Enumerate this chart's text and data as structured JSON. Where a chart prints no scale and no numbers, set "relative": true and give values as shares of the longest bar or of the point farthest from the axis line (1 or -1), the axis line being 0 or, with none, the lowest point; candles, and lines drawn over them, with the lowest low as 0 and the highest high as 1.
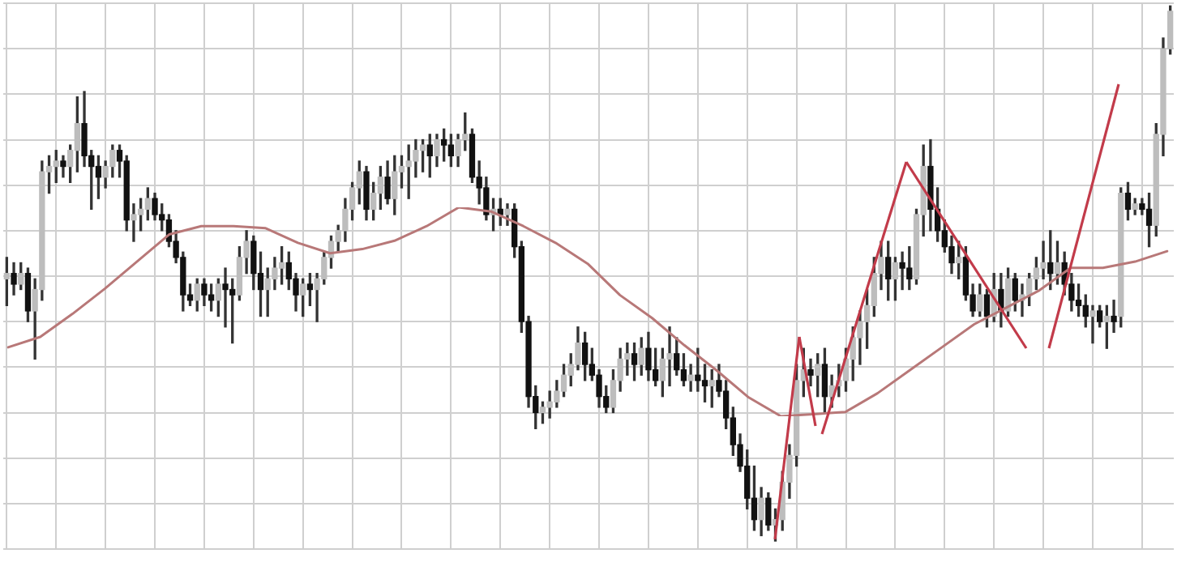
{
  "chart_data": [
    {
      "type": "candlestick",
      "relative": true,
      "grid": true,
      "tick_labels": false,
      "categories": [
        null,
        null,
        null,
        null,
        null,
        null,
        null,
        null,
        null,
        null,
        null,
        null,
        null,
        null,
        null,
        null,
        null,
        null,
        null,
        null,
        null,
        null,
        null,
        null,
        null,
        null,
        null,
        null,
        null,
        null,
        null,
        null,
        null,
        null,
        null,
        null,
        null,
        null,
        null,
        null,
        null,
        null,
        null,
        null,
        null,
        null,
        null,
        null,
        null,
        null,
        null,
        null,
        null,
        null,
        null,
        null,
        null,
        null,
        null,
        null,
        null,
        null,
        null,
        null,
        null,
        null,
        null,
        null,
        null,
        null,
        null,
        null,
        null,
        null,
        null,
        null,
        null,
        null,
        null,
        null,
        null,
        null,
        null,
        null,
        null,
        null,
        null,
        null,
        null,
        null,
        null,
        null,
        null,
        null,
        null,
        null,
        null,
        null,
        null,
        null,
        null,
        null,
        null,
        null,
        null,
        null,
        null,
        null,
        null,
        null,
        null,
        null,
        null,
        null,
        null,
        null,
        null,
        null,
        null,
        null,
        null,
        null,
        null,
        null,
        null,
        null,
        null,
        null,
        null,
        null,
        null,
        null,
        null,
        null,
        null,
        null,
        null,
        null,
        null,
        null,
        null,
        null,
        null,
        null,
        null,
        null,
        null,
        null,
        null,
        null,
        null,
        null,
        null,
        null,
        null,
        null,
        null,
        null,
        null,
        null,
        null,
        null,
        null,
        null,
        null,
        null
      ],
      "ohlc": [
        [
          0.49,
          0.53,
          0.44,
          0.5
        ],
        [
          0.5,
          0.52,
          0.46,
          0.48
        ],
        [
          0.48,
          0.52,
          0.47,
          0.5
        ],
        [
          0.5,
          0.51,
          0.41,
          0.43
        ],
        [
          0.43,
          0.49,
          0.34,
          0.47
        ],
        [
          0.47,
          0.71,
          0.45,
          0.69
        ],
        [
          0.69,
          0.72,
          0.65,
          0.7
        ],
        [
          0.7,
          0.73,
          0.67,
          0.71
        ],
        [
          0.71,
          0.72,
          0.68,
          0.7
        ],
        [
          0.7,
          0.74,
          0.67,
          0.73
        ],
        [
          0.73,
          0.83,
          0.69,
          0.78
        ],
        [
          0.78,
          0.84,
          0.7,
          0.72
        ],
        [
          0.72,
          0.73,
          0.62,
          0.7
        ],
        [
          0.7,
          0.72,
          0.64,
          0.68
        ],
        [
          0.68,
          0.71,
          0.66,
          0.7
        ],
        [
          0.7,
          0.74,
          0.68,
          0.73
        ],
        [
          0.73,
          0.74,
          0.68,
          0.71
        ],
        [
          0.71,
          0.72,
          0.58,
          0.6
        ],
        [
          0.6,
          0.63,
          0.56,
          0.61
        ],
        [
          0.61,
          0.64,
          0.58,
          0.62
        ],
        [
          0.62,
          0.66,
          0.6,
          0.64
        ],
        [
          0.64,
          0.65,
          0.6,
          0.61
        ],
        [
          0.61,
          0.63,
          0.58,
          0.6
        ],
        [
          0.6,
          0.61,
          0.55,
          0.56
        ],
        [
          0.56,
          0.58,
          0.52,
          0.53
        ],
        [
          0.53,
          0.54,
          0.43,
          0.46
        ],
        [
          0.46,
          0.48,
          0.44,
          0.45
        ],
        [
          0.45,
          0.49,
          0.43,
          0.48
        ],
        [
          0.48,
          0.49,
          0.44,
          0.46
        ],
        [
          0.46,
          0.48,
          0.43,
          0.45
        ],
        [
          0.45,
          0.49,
          0.42,
          0.48
        ],
        [
          0.48,
          0.51,
          0.4,
          0.47
        ],
        [
          0.47,
          0.49,
          0.37,
          0.46
        ],
        [
          0.46,
          0.55,
          0.45,
          0.53
        ],
        [
          0.53,
          0.58,
          0.5,
          0.56
        ],
        [
          0.56,
          0.57,
          0.47,
          0.5
        ],
        [
          0.5,
          0.54,
          0.42,
          0.47
        ],
        [
          0.47,
          0.51,
          0.42,
          0.49
        ],
        [
          0.49,
          0.53,
          0.47,
          0.51
        ],
        [
          0.51,
          0.55,
          0.48,
          0.52
        ],
        [
          0.52,
          0.54,
          0.47,
          0.49
        ],
        [
          0.49,
          0.5,
          0.43,
          0.46
        ],
        [
          0.46,
          0.49,
          0.42,
          0.48
        ],
        [
          0.48,
          0.5,
          0.44,
          0.47
        ],
        [
          0.47,
          0.5,
          0.41,
          0.49
        ],
        [
          0.49,
          0.54,
          0.48,
          0.53
        ],
        [
          0.53,
          0.57,
          0.51,
          0.56
        ],
        [
          0.56,
          0.59,
          0.54,
          0.58
        ],
        [
          0.58,
          0.64,
          0.56,
          0.62
        ],
        [
          0.62,
          0.67,
          0.6,
          0.66
        ],
        [
          0.66,
          0.71,
          0.63,
          0.69
        ],
        [
          0.69,
          0.7,
          0.6,
          0.62
        ],
        [
          0.62,
          0.67,
          0.6,
          0.65
        ],
        [
          0.65,
          0.7,
          0.62,
          0.68
        ],
        [
          0.68,
          0.71,
          0.63,
          0.64
        ],
        [
          0.64,
          0.72,
          0.61,
          0.69
        ],
        [
          0.69,
          0.72,
          0.66,
          0.7
        ],
        [
          0.7,
          0.74,
          0.64,
          0.71
        ],
        [
          0.71,
          0.75,
          0.68,
          0.73
        ],
        [
          0.73,
          0.75,
          0.69,
          0.74
        ],
        [
          0.74,
          0.76,
          0.68,
          0.72
        ],
        [
          0.72,
          0.76,
          0.7,
          0.75
        ],
        [
          0.75,
          0.77,
          0.71,
          0.74
        ],
        [
          0.74,
          0.76,
          0.7,
          0.72
        ],
        [
          0.72,
          0.76,
          0.7,
          0.75
        ],
        [
          0.75,
          0.8,
          0.73,
          0.76
        ],
        [
          0.76,
          0.77,
          0.67,
          0.68
        ],
        [
          0.68,
          0.71,
          0.63,
          0.66
        ],
        [
          0.66,
          0.68,
          0.6,
          0.61
        ],
        [
          0.61,
          0.64,
          0.58,
          0.62
        ],
        [
          0.62,
          0.64,
          0.59,
          0.61
        ],
        [
          0.61,
          0.63,
          0.59,
          0.62
        ],
        [
          0.62,
          0.63,
          0.53,
          0.55
        ],
        [
          0.55,
          0.56,
          0.39,
          0.41
        ],
        [
          0.41,
          0.42,
          0.25,
          0.27
        ],
        [
          0.27,
          0.29,
          0.21,
          0.24
        ],
        [
          0.24,
          0.26,
          0.22,
          0.25
        ],
        [
          0.25,
          0.28,
          0.23,
          0.26
        ],
        [
          0.26,
          0.3,
          0.25,
          0.28
        ],
        [
          0.28,
          0.33,
          0.27,
          0.31
        ],
        [
          0.31,
          0.35,
          0.29,
          0.33
        ],
        [
          0.33,
          0.4,
          0.32,
          0.37
        ],
        [
          0.37,
          0.39,
          0.3,
          0.33
        ],
        [
          0.33,
          0.36,
          0.3,
          0.31
        ],
        [
          0.31,
          0.32,
          0.25,
          0.27
        ],
        [
          0.27,
          0.29,
          0.24,
          0.25
        ],
        [
          0.25,
          0.32,
          0.24,
          0.3
        ],
        [
          0.3,
          0.36,
          0.28,
          0.34
        ],
        [
          0.34,
          0.37,
          0.31,
          0.35
        ],
        [
          0.35,
          0.37,
          0.3,
          0.33
        ],
        [
          0.33,
          0.38,
          0.31,
          0.36
        ],
        [
          0.36,
          0.39,
          0.3,
          0.32
        ],
        [
          0.32,
          0.36,
          0.29,
          0.3
        ],
        [
          0.3,
          0.36,
          0.27,
          0.34
        ],
        [
          0.34,
          0.4,
          0.29,
          0.35
        ],
        [
          0.35,
          0.38,
          0.31,
          0.32
        ],
        [
          0.32,
          0.35,
          0.29,
          0.3
        ],
        [
          0.3,
          0.33,
          0.28,
          0.31
        ],
        [
          0.31,
          0.36,
          0.28,
          0.3
        ],
        [
          0.3,
          0.33,
          0.26,
          0.29
        ],
        [
          0.29,
          0.32,
          0.25,
          0.3
        ],
        [
          0.3,
          0.33,
          0.27,
          0.28
        ],
        [
          0.28,
          0.3,
          0.21,
          0.23
        ],
        [
          0.23,
          0.25,
          0.16,
          0.18
        ],
        [
          0.18,
          0.2,
          0.13,
          0.14
        ],
        [
          0.14,
          0.17,
          0.06,
          0.08
        ],
        [
          0.08,
          0.14,
          0.02,
          0.04
        ],
        [
          0.04,
          0.1,
          0.01,
          0.08
        ],
        [
          0.08,
          0.09,
          0.02,
          0.03
        ],
        [
          0.03,
          0.06,
          0.0,
          0.04
        ],
        [
          0.04,
          0.13,
          0.02,
          0.11
        ],
        [
          0.11,
          0.18,
          0.08,
          0.16
        ],
        [
          0.16,
          0.33,
          0.14,
          0.3
        ],
        [
          0.3,
          0.36,
          0.27,
          0.32
        ],
        [
          0.32,
          0.34,
          0.29,
          0.31
        ],
        [
          0.31,
          0.35,
          0.27,
          0.33
        ],
        [
          0.33,
          0.36,
          0.24,
          0.27
        ],
        [
          0.27,
          0.31,
          0.25,
          0.29
        ],
        [
          0.29,
          0.33,
          0.27,
          0.3
        ],
        [
          0.3,
          0.36,
          0.28,
          0.34
        ],
        [
          0.34,
          0.4,
          0.3,
          0.38
        ],
        [
          0.38,
          0.43,
          0.33,
          0.41
        ],
        [
          0.41,
          0.47,
          0.36,
          0.44
        ],
        [
          0.44,
          0.53,
          0.42,
          0.5
        ],
        [
          0.5,
          0.56,
          0.47,
          0.53
        ],
        [
          0.53,
          0.56,
          0.45,
          0.49
        ],
        [
          0.49,
          0.53,
          0.45,
          0.52
        ],
        [
          0.52,
          0.54,
          0.47,
          0.51
        ],
        [
          0.51,
          0.55,
          0.47,
          0.49
        ],
        [
          0.49,
          0.62,
          0.48,
          0.61
        ],
        [
          0.61,
          0.74,
          0.57,
          0.7
        ],
        [
          0.7,
          0.75,
          0.58,
          0.62
        ],
        [
          0.62,
          0.66,
          0.56,
          0.58
        ],
        [
          0.58,
          0.6,
          0.54,
          0.55
        ],
        [
          0.55,
          0.57,
          0.5,
          0.52
        ],
        [
          0.52,
          0.56,
          0.49,
          0.53
        ],
        [
          0.53,
          0.55,
          0.45,
          0.46
        ],
        [
          0.46,
          0.48,
          0.42,
          0.43
        ],
        [
          0.43,
          0.48,
          0.42,
          0.46
        ],
        [
          0.46,
          0.47,
          0.4,
          0.42
        ],
        [
          0.42,
          0.5,
          0.41,
          0.47
        ],
        [
          0.47,
          0.5,
          0.4,
          0.43
        ],
        [
          0.43,
          0.51,
          0.42,
          0.49
        ],
        [
          0.49,
          0.5,
          0.43,
          0.45
        ],
        [
          0.45,
          0.48,
          0.42,
          0.46
        ],
        [
          0.46,
          0.5,
          0.44,
          0.49
        ],
        [
          0.49,
          0.53,
          0.47,
          0.51
        ],
        [
          0.51,
          0.56,
          0.49,
          0.52
        ],
        [
          0.52,
          0.58,
          0.47,
          0.5
        ],
        [
          0.5,
          0.56,
          0.48,
          0.52
        ],
        [
          0.52,
          0.54,
          0.46,
          0.48
        ],
        [
          0.48,
          0.5,
          0.43,
          0.45
        ],
        [
          0.45,
          0.48,
          0.42,
          0.44
        ],
        [
          0.44,
          0.46,
          0.4,
          0.42
        ],
        [
          0.42,
          0.44,
          0.37,
          0.43
        ],
        [
          0.43,
          0.44,
          0.4,
          0.41
        ],
        [
          0.41,
          0.44,
          0.36,
          0.42
        ],
        [
          0.42,
          0.45,
          0.39,
          0.41
        ],
        [
          0.42,
          0.66,
          0.4,
          0.65
        ],
        [
          0.65,
          0.67,
          0.6,
          0.62
        ],
        [
          0.62,
          0.64,
          0.61,
          0.63
        ],
        [
          0.63,
          0.64,
          0.61,
          0.62
        ],
        [
          0.62,
          0.65,
          0.55,
          0.59
        ],
        [
          0.59,
          0.78,
          0.57,
          0.76
        ],
        [
          0.76,
          0.94,
          0.72,
          0.92
        ],
        [
          0.92,
          1.0,
          0.91,
          0.99
        ]
      ]
    },
    {
      "type": "line",
      "relative": true,
      "tick_labels": false,
      "categories": [
        null,
        null,
        null,
        null,
        null,
        null,
        null,
        null,
        null,
        null,
        null,
        null,
        null,
        null,
        null,
        null,
        null,
        null,
        null,
        null,
        null,
        null,
        null,
        null,
        null,
        null,
        null,
        null,
        null,
        null,
        null,
        null,
        null,
        null,
        null,
        null,
        null
      ],
      "series": [
        {
          "color": "#b87878",
          "values": [
            0.33,
            0.38,
            0.49,
            0.61,
            0.74,
            0.87,
            0.91,
            0.91,
            0.9,
            0.83,
            0.78,
            0.8,
            0.84,
            0.91,
            1.0,
            0.98,
            0.91,
            0.83,
            0.73,
            0.58,
            0.47,
            0.34,
            0.22,
            0.09,
            0.0,
            0.01,
            0.02,
            0.11,
            0.22,
            0.33,
            0.44,
            0.52,
            0.6,
            0.71,
            0.71,
            0.74,
            0.79
          ]
        }
      ]
    }
  ]
}
